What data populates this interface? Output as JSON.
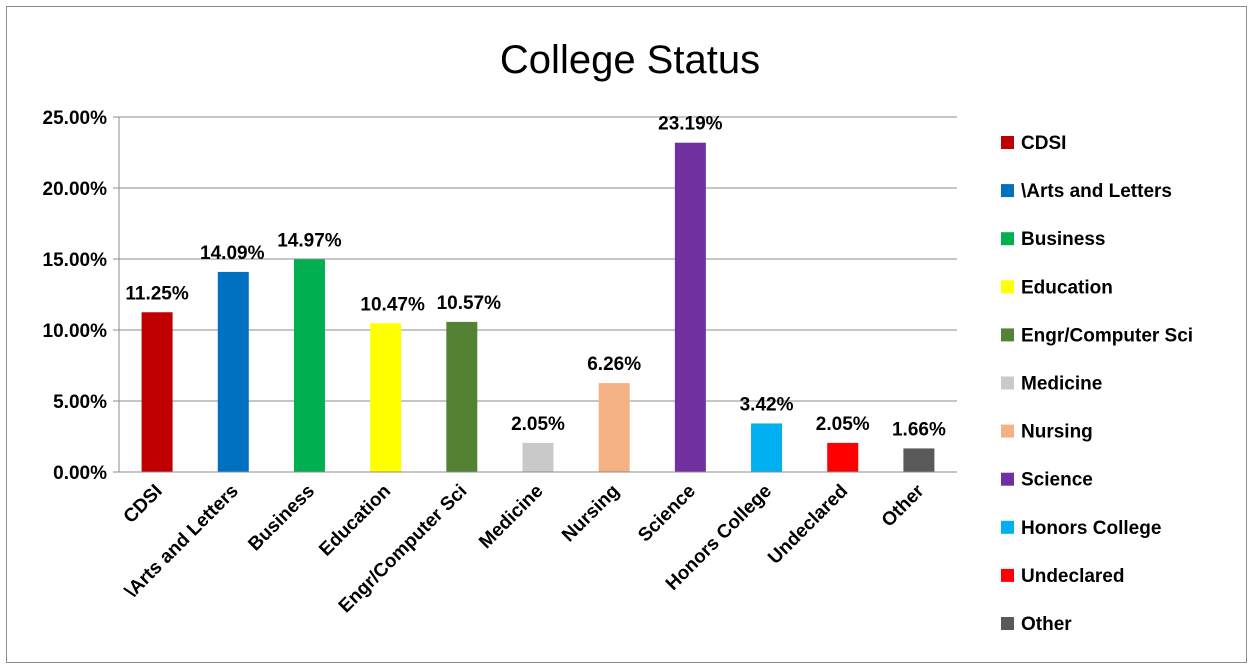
{
  "chart_data": {
    "type": "bar",
    "title": "College Status",
    "xlabel": "",
    "ylabel": "",
    "ylim": [
      0,
      0.25
    ],
    "yticks": [
      {
        "value": 0.25,
        "label": "25.00%"
      },
      {
        "value": 0.2,
        "label": "20.00%"
      },
      {
        "value": 0.15,
        "label": "15.00%"
      },
      {
        "value": 0.1,
        "label": "10.00%"
      },
      {
        "value": 0.05,
        "label": "5.00%"
      },
      {
        "value": 0.0,
        "label": "0.00%"
      }
    ],
    "grid": true,
    "legend_position": "right",
    "categories": [
      "CDSI",
      "\\Arts and Letters",
      "Business",
      "Education",
      "Engr/Computer Sci",
      "Medicine",
      "Nursing",
      "Science",
      "Honors College",
      "Undeclared",
      "Other"
    ],
    "values": [
      0.1125,
      0.1409,
      0.1497,
      0.1047,
      0.1057,
      0.0205,
      0.0626,
      0.2319,
      0.0342,
      0.0205,
      0.0166
    ],
    "data_labels": [
      "11.25%",
      "14.09%",
      "14.97%",
      "10.47%",
      "10.57%",
      "2.05%",
      "6.26%",
      "23.19%",
      "3.42%",
      "2.05%",
      "1.66%"
    ],
    "colors": [
      "#C00000",
      "#0070C0",
      "#00B050",
      "#FFFF00",
      "#548235",
      "#C9C9C9",
      "#F4B183",
      "#7030A0",
      "#00B0F0",
      "#FF0000",
      "#595959"
    ]
  }
}
